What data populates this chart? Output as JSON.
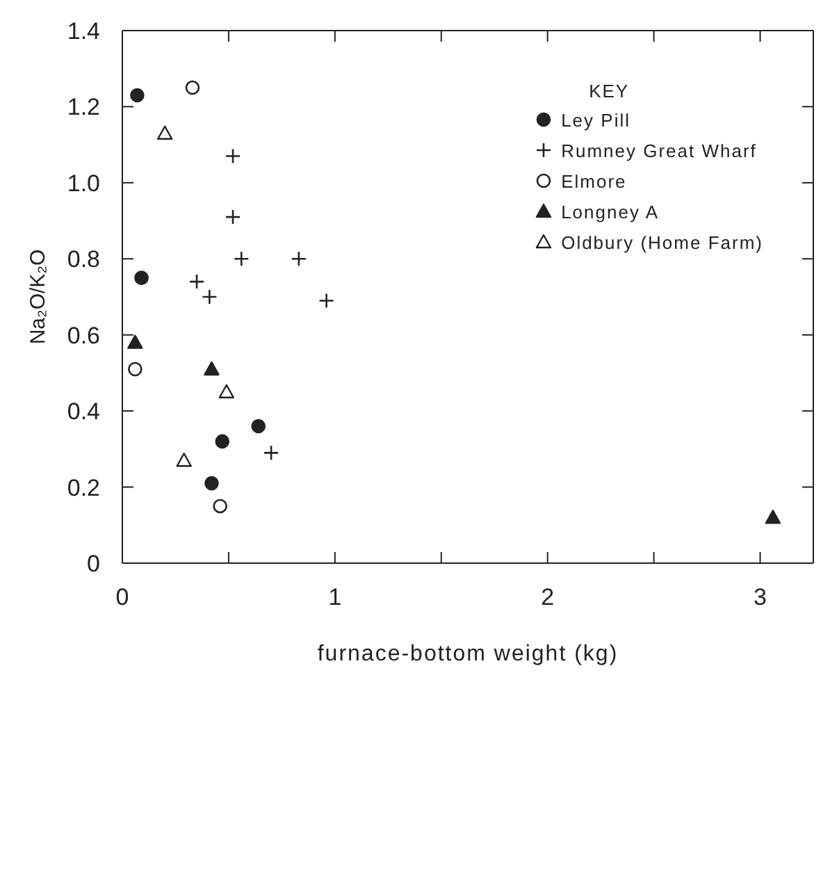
{
  "chart_data": {
    "type": "scatter",
    "xlabel": "furnace-bottom weight (kg)",
    "ylabel": "Na₂O/K₂O",
    "legend_title": "KEY",
    "legend": "top right",
    "xlim": [
      0,
      3.25
    ],
    "xticks": [
      0,
      {
        "value": 0.5,
        "label": null
      },
      1,
      {
        "value": 1.5,
        "label": null
      },
      2,
      {
        "value": 2.5,
        "label": null
      },
      3
    ],
    "ylim": [
      0,
      1.4
    ],
    "yticks": [
      0,
      0.2,
      0.4,
      0.6,
      0.8,
      {
        "value": 1,
        "label": "1.0"
      },
      1.2,
      1.4
    ],
    "series": [
      {
        "name": "Ley Pill",
        "color": "#222222",
        "marker": "circle",
        "x": [
          0.07,
          0.09,
          0.47,
          0.64,
          0.42
        ],
        "values": [
          1.23,
          0.75,
          0.32,
          0.36,
          0.21
        ]
      },
      {
        "name": "Rumney Great Wharf",
        "color": "#222222",
        "marker": "cross",
        "x": [
          0.52,
          0.52,
          0.56,
          0.83,
          0.35,
          0.41,
          0.96,
          0.7
        ],
        "values": [
          1.07,
          0.91,
          0.8,
          0.8,
          0.74,
          0.7,
          0.69,
          0.29
        ]
      },
      {
        "name": "Elmore",
        "color": "#ffffff",
        "marker": "circle",
        "x": [
          0.33,
          0.06,
          0.46
        ],
        "values": [
          1.25,
          0.51,
          0.15
        ]
      },
      {
        "name": "Longney A",
        "color": "#222222",
        "marker": "triangle",
        "x": [
          0.06,
          0.42,
          3.06
        ],
        "values": [
          0.58,
          0.51,
          0.12
        ]
      },
      {
        "name": "Oldbury (Home Farm)",
        "color": "#ffffff",
        "marker": "triangle",
        "x": [
          0.2,
          0.49,
          0.29
        ],
        "values": [
          1.13,
          0.45,
          0.27
        ]
      }
    ]
  }
}
